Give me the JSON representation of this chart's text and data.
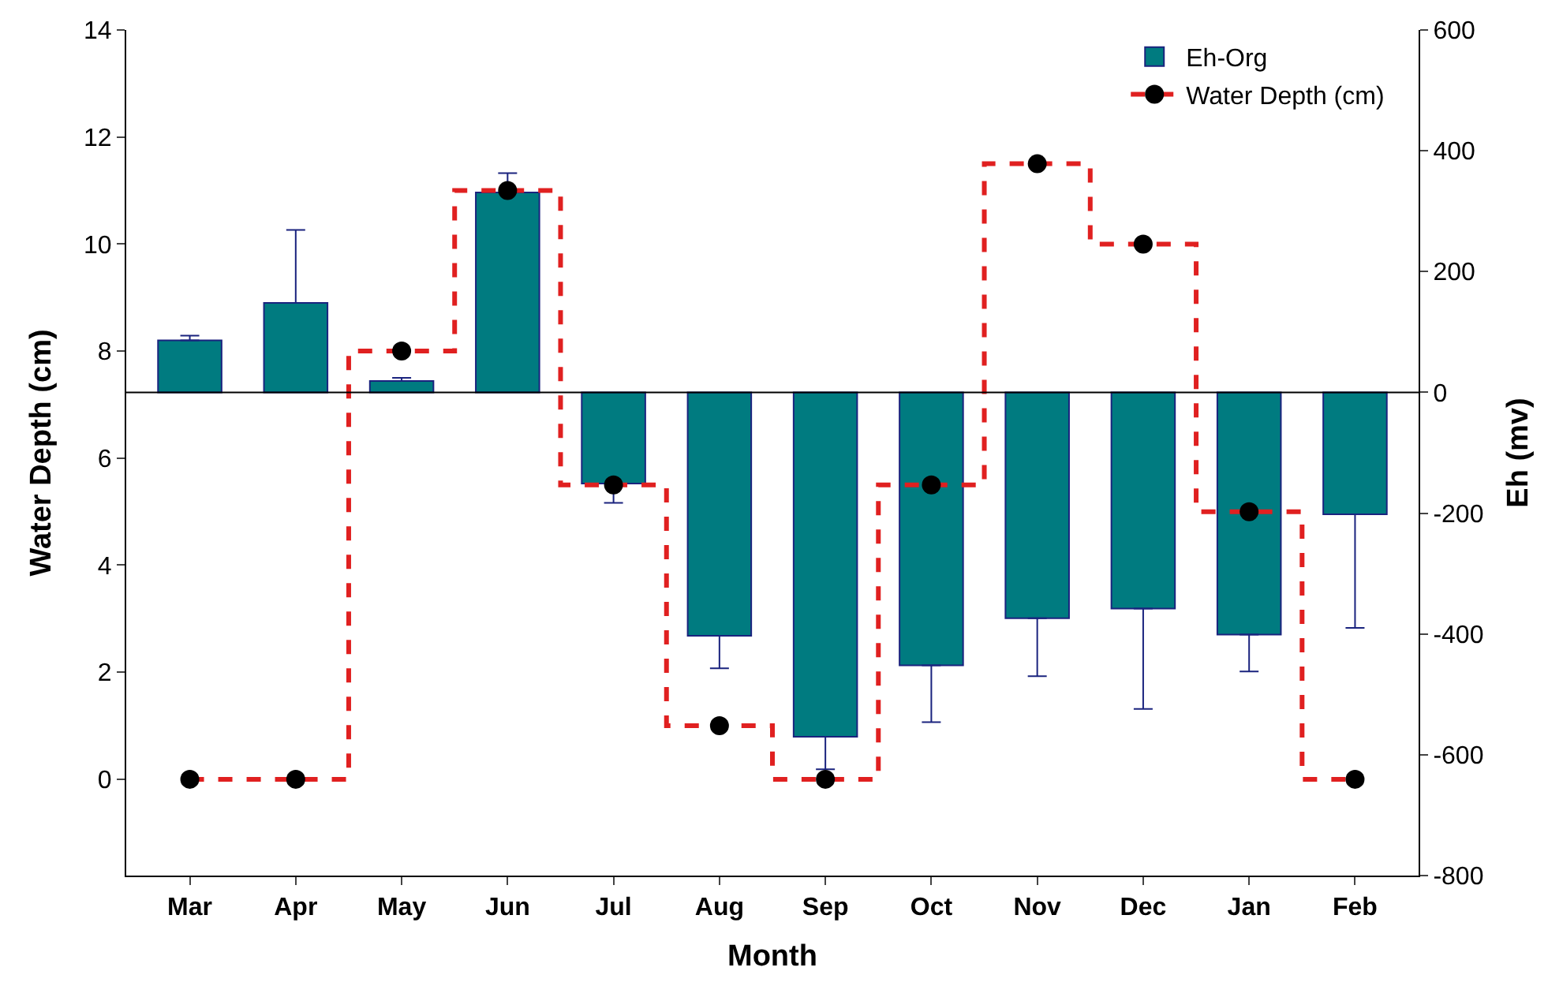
{
  "chart_data": {
    "type": "bar",
    "xlabel": "Month",
    "ylabel": "Eh (mv)",
    "y2label": "Water Depth (cm)",
    "categories": [
      "Mar",
      "Apr",
      "May",
      "Jun",
      "Jul",
      "Aug",
      "Sep",
      "Oct",
      "Nov",
      "Dec",
      "Jan",
      "Feb"
    ],
    "series": [
      {
        "name": "Eh-Org",
        "color": "#007b80",
        "values": [
          86,
          148,
          19,
          331,
          -151,
          -403,
          -570,
          -452,
          -374,
          -358,
          -401,
          -202
        ],
        "errors": [
          [
            86,
            94
          ],
          [
            148,
            269
          ],
          [
            19,
            24
          ],
          [
            331,
            363
          ],
          [
            -183,
            -151
          ],
          [
            -457,
            -403
          ],
          [
            -624,
            -570
          ],
          [
            -546,
            -452
          ],
          [
            -470,
            -374
          ],
          [
            -524,
            -358
          ],
          [
            -462,
            -401
          ],
          [
            -390,
            -202
          ]
        ]
      },
      {
        "name": "Water Depth (cm)",
        "type": "step",
        "axis": "y2",
        "color": "#e02020",
        "line_style": "dashed",
        "marker": "circle",
        "values": [
          0,
          0,
          8,
          11,
          5.5,
          1,
          0,
          5.5,
          11.5,
          10,
          5,
          0
        ]
      }
    ],
    "ylim": [
      -800,
      600
    ],
    "yticks": [
      -800,
      -600,
      -400,
      -200,
      0,
      200,
      400,
      600
    ],
    "y2lim": [
      -1.8,
      14
    ],
    "y2ticks": [
      0,
      2,
      4,
      6,
      8,
      10,
      12,
      14
    ],
    "ref_lines": [
      {
        "axis": "y",
        "value": 0,
        "color": "#000000"
      }
    ],
    "legend": "top right"
  }
}
